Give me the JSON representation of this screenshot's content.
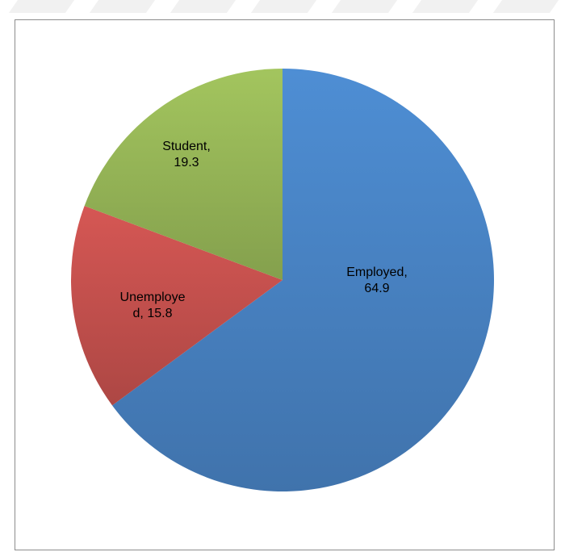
{
  "chart_data": {
    "type": "pie",
    "title": "",
    "slices": [
      {
        "key": "employed",
        "label_lines": [
          "Employed,",
          "64.9"
        ],
        "category": "Employed",
        "value": 64.9,
        "color": "#4a86c8"
      },
      {
        "key": "unemployed",
        "label_lines": [
          "Unemploye",
          "d, 15.8"
        ],
        "category": "Unemployed",
        "value": 15.8,
        "color": "#c9524f"
      },
      {
        "key": "student",
        "label_lines": [
          "Student,",
          "19.3"
        ],
        "category": "Student",
        "value": 19.3,
        "color": "#9aba59"
      }
    ],
    "legend": "none",
    "data_labels": "inside"
  }
}
